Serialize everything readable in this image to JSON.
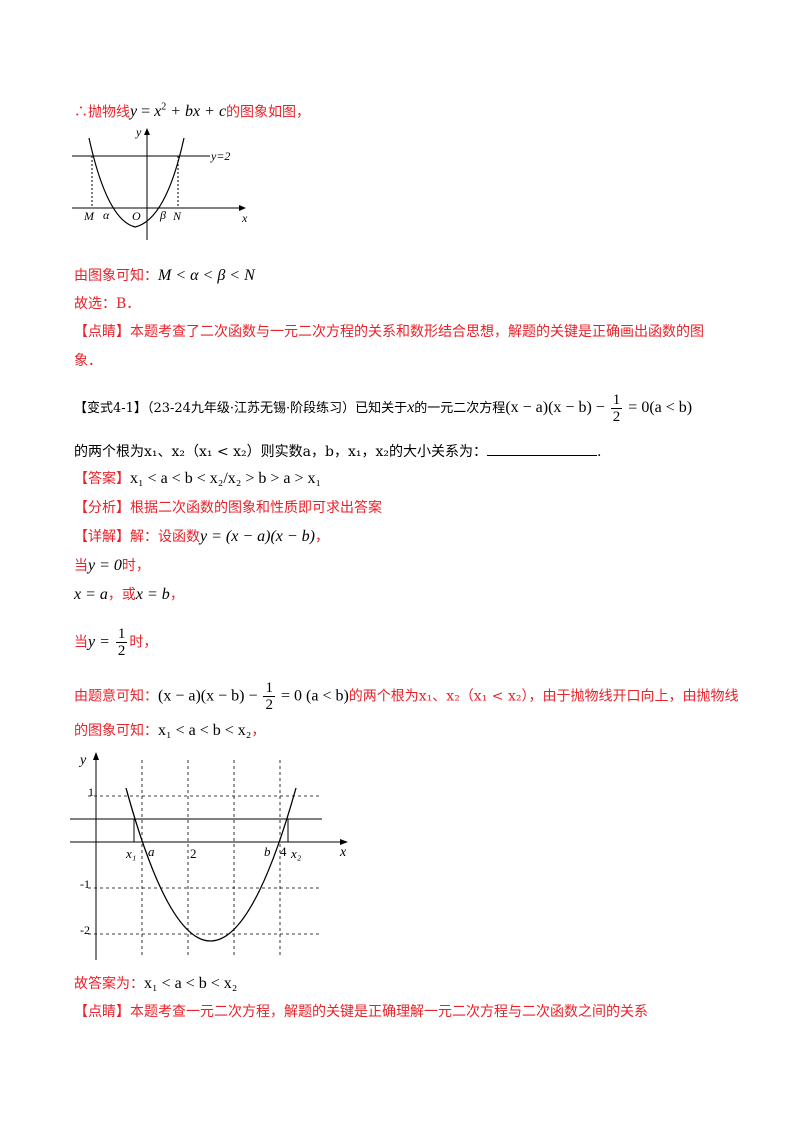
{
  "line1": {
    "prefix": "∴抛物线",
    "formula_y": "y",
    "formula_eq": " = ",
    "formula_x": "x",
    "formula_sup": "2",
    "formula_rest": " + bx + c",
    "suffix": "的图象如图，"
  },
  "graph1": {
    "y_axis": "y",
    "x_axis": "x",
    "hline_label": "y=2",
    "labels": [
      "M",
      "α",
      "O",
      "β",
      "N"
    ]
  },
  "line2": {
    "text": "由图象可知：",
    "math": "M < α < β < N"
  },
  "line3": {
    "text": "故选：B．"
  },
  "line4": {
    "tag": "【点睛】",
    "text": "本题考查了二次函数与一元二次方程的关系和数形结合思想，解题的关键是正确画出函数的图"
  },
  "line5": {
    "text": "象．"
  },
  "q": {
    "tag": "【变式4-1】",
    "source": "（23-24九年级·江苏无锡·阶段练习）已知关于",
    "var": "x",
    "mid": "的一元二次方程",
    "eq_left": "(x − a)(x − b) − ",
    "frac_num": "1",
    "frac_den": "2",
    "eq_right": " = 0",
    "cond": "(a < b)",
    "line2": "的两个根为x₁、x₂（x₁ < x₂）则实数a，b，x₁，x₂的大小关系为：",
    "end": "."
  },
  "answer": {
    "tag": "【答案】",
    "text": "x₁ < a < b < x₂/x₂ > b > a > x₁"
  },
  "analysis": {
    "tag": "【分析】",
    "text": "根据二次函数的图象和性质即可求出答案"
  },
  "detail": {
    "tag": "【详解】",
    "text": "解：设函数",
    "math": "y = (x − a)(x − b)",
    "end": "，"
  },
  "d1": {
    "pre": "当",
    "math": "y = 0",
    "post": "时，"
  },
  "d2": {
    "math1": "x = a",
    "mid": "，或",
    "math2": "x = b",
    "post": "，"
  },
  "d3": {
    "pre": "当",
    "math": "y = ",
    "num": "1",
    "den": "2",
    "post": "时，"
  },
  "d4": {
    "pre": "由题意可知：",
    "eq": "(x − a)(x − b) − ",
    "num": "1",
    "den": "2",
    "eq2": " = 0 ",
    "cond": "(a < b)",
    "post": "的两个根为x₁、x₂（x₁ < x₂），由于抛物线开口向上，由抛物线"
  },
  "d5": {
    "pre": "的图象可知：",
    "math": "x₁ < a < b < x₂",
    "post": "，"
  },
  "graph2": {
    "y_axis": "y",
    "x_axis": "x",
    "ticks_y": [
      "1",
      "-1",
      "-2"
    ],
    "labels": [
      "x₁",
      "a",
      "2",
      "b",
      "4",
      "x₂"
    ]
  },
  "final": {
    "pre": "故答案为：",
    "math": "x₁ < a < b < x₂"
  },
  "note": {
    "tag": "【点睛】",
    "text": "本题考查一元二次方程，解题的关键是正确理解一元二次方程与二次函数之间的关系"
  }
}
